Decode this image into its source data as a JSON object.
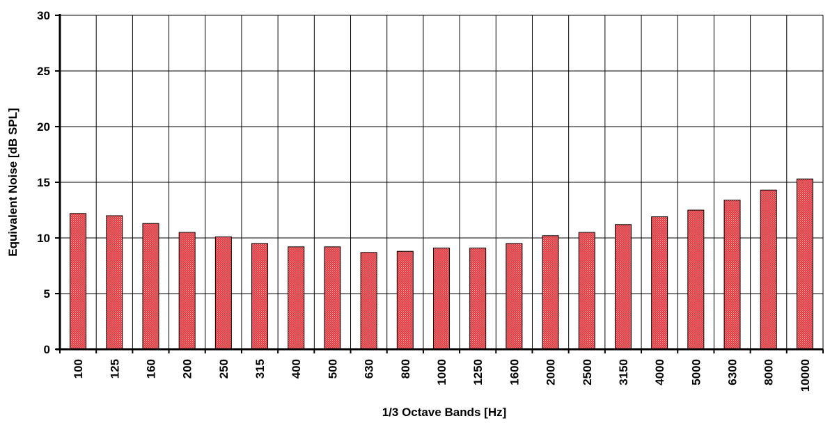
{
  "chart_data": {
    "type": "bar",
    "title": "",
    "xlabel": "1/3 Octave Bands [Hz]",
    "ylabel": "Equivalent Noise  [dB SPL]",
    "ylim": [
      0,
      30
    ],
    "yticks": [
      "0",
      "5",
      "10",
      "15",
      "20",
      "25",
      "30"
    ],
    "categories": [
      "100",
      "125",
      "160",
      "200",
      "250",
      "315",
      "400",
      "500",
      "630",
      "800",
      "1000",
      "1250",
      "1600",
      "2000",
      "2500",
      "3150",
      "4000",
      "5000",
      "6300",
      "8000",
      "10000"
    ],
    "values": [
      12.2,
      12.0,
      11.3,
      10.5,
      10.1,
      9.5,
      9.2,
      9.2,
      8.7,
      8.8,
      9.1,
      9.1,
      9.5,
      10.2,
      10.5,
      11.2,
      11.9,
      12.5,
      13.4,
      14.3,
      15.3
    ],
    "grid": true,
    "bar_color": "#d9323a"
  }
}
